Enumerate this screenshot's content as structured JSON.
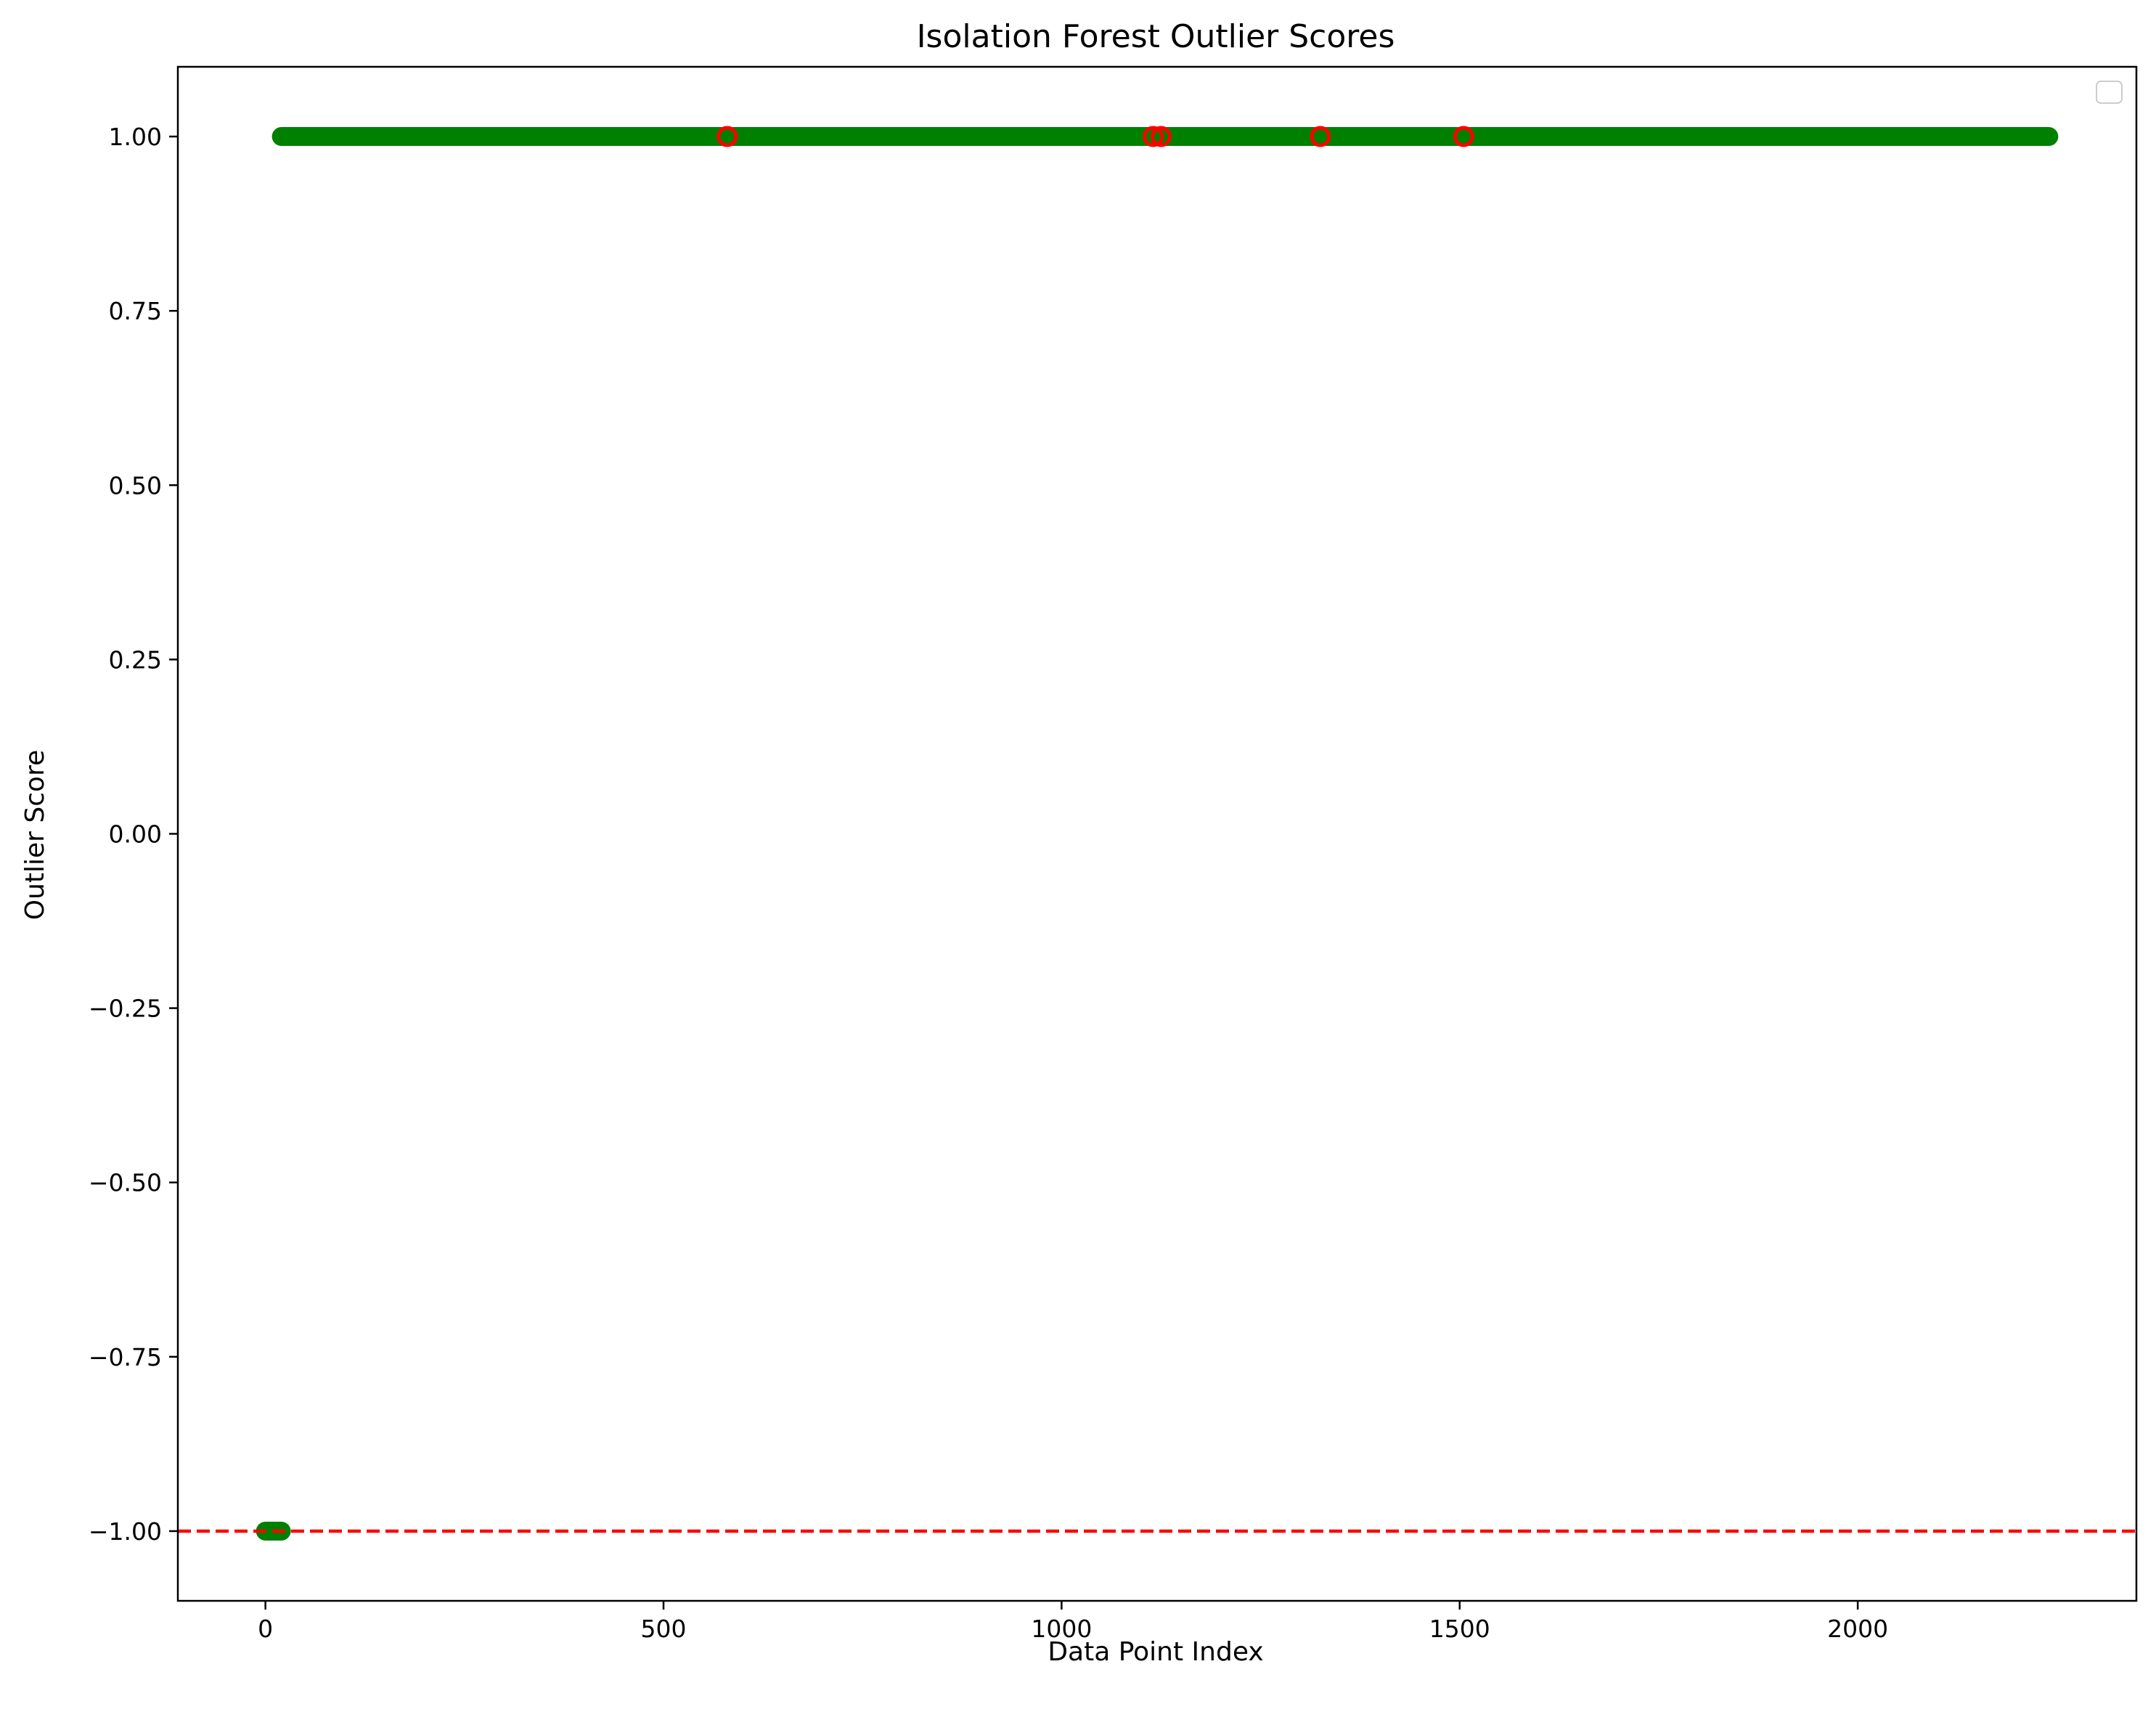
{
  "chart_data": {
    "type": "scatter",
    "title": "Isolation Forest Outlier Scores",
    "xlabel": "Data Point Index",
    "ylabel": "Outlier Score",
    "xlim": [
      -110,
      2350
    ],
    "ylim": [
      -1.1,
      1.1
    ],
    "xticks": [
      0,
      500,
      1000,
      1500,
      2000
    ],
    "xtick_labels": [
      "0",
      "500",
      "1000",
      "1500",
      "2000"
    ],
    "yticks": [
      1.0,
      0.75,
      0.5,
      0.25,
      0.0,
      -0.25,
      -0.5,
      -0.75,
      -1.0
    ],
    "ytick_labels": [
      "1.00",
      "0.75",
      "0.50",
      "0.25",
      "0.00",
      "−0.25",
      "−0.50",
      "−0.75",
      "−1.00"
    ],
    "grid": false,
    "legend": {
      "placement": "upper-right",
      "entries": []
    },
    "threshold_line": {
      "y": -1.0,
      "color": "#ff0000",
      "style": "dashed"
    },
    "series": [
      {
        "color": "#008000",
        "segments": [
          {
            "y": 1.0,
            "x_start": 20,
            "x_end": 2240
          },
          {
            "y": -1.0,
            "x_start": 0,
            "x_end": 20
          }
        ]
      },
      {
        "color": "#ff0000",
        "points": [
          {
            "x": 580,
            "y": 1.0
          },
          {
            "x": 1115,
            "y": 1.0
          },
          {
            "x": 1125,
            "y": 1.0
          },
          {
            "x": 1325,
            "y": 1.0
          },
          {
            "x": 1505,
            "y": 1.0
          }
        ]
      }
    ]
  }
}
